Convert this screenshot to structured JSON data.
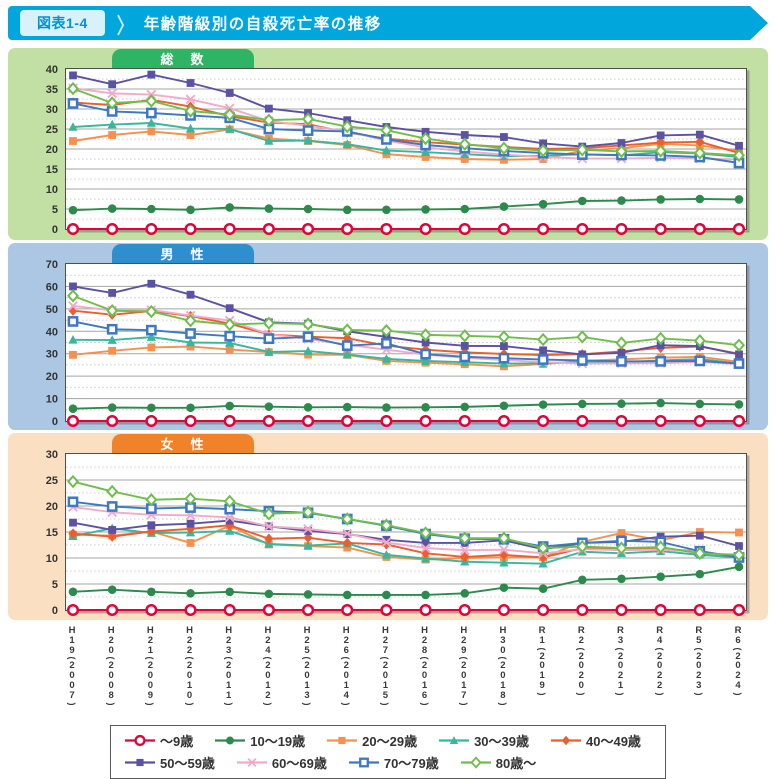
{
  "header": {
    "tag": "図表1-4",
    "title": "年齢階級別の自殺死亡率の推移",
    "banner_color": "#00a6dc",
    "tag_bg": "#d9f1fb",
    "tag_color": "#0093d5"
  },
  "panel_colors": {
    "total_bg": "#c2dfa4",
    "total_tab": "#2fb365",
    "male_bg": "#abc7e3",
    "male_tab": "#2e8fd0",
    "female_bg": "#fbdfc2",
    "female_tab": "#f0832a"
  },
  "series_styles": {
    "age0_9": {
      "color": "#e60039",
      "marker": "open-circle"
    },
    "age10_19": {
      "color": "#2d8a4d",
      "marker": "circle"
    },
    "age20_29": {
      "color": "#f6904e",
      "marker": "square"
    },
    "age30_39": {
      "color": "#38b79d",
      "marker": "triangle"
    },
    "age40_49": {
      "color": "#ea5f2d",
      "marker": "diamond"
    },
    "age50_59": {
      "color": "#5c52a4",
      "marker": "square"
    },
    "age60_69": {
      "color": "#f2aac8",
      "marker": "x"
    },
    "age70_79": {
      "color": "#3c78c4",
      "marker": "open-square"
    },
    "age80": {
      "color": "#6ebe4c",
      "marker": "open-diamond"
    }
  },
  "legend": {
    "rows": [
      [
        {
          "key": "age0_9",
          "label": "～9歳"
        },
        {
          "key": "age10_19",
          "label": "10～19歳"
        },
        {
          "key": "age20_29",
          "label": "20～29歳"
        },
        {
          "key": "age30_39",
          "label": "30～39歳"
        },
        {
          "key": "age40_49",
          "label": "40～49歳"
        }
      ],
      [
        {
          "key": "age50_59",
          "label": "50～59歳"
        },
        {
          "key": "age60_69",
          "label": "60～69歳"
        },
        {
          "key": "age70_79",
          "label": "70～79歳"
        },
        {
          "key": "age80",
          "label": "80歳～"
        }
      ]
    ]
  },
  "chart_data": [
    {
      "type": "line",
      "title": "総　数",
      "ylim": [
        0,
        40
      ],
      "ytick": 5,
      "grid": true,
      "categories": [
        "H19(2007)",
        "H20(2008)",
        "H21(2009)",
        "H22(2010)",
        "H23(2011)",
        "H24(2012)",
        "H25(2013)",
        "H26(2014)",
        "H27(2015)",
        "H28(2016)",
        "H29(2017)",
        "H30(2018)",
        "R1(2019)",
        "R2(2020)",
        "R3(2021)",
        "R4(2022)",
        "R5(2023)",
        "R6(2024)"
      ],
      "series": [
        {
          "key": "age0_9",
          "name": "～9歳",
          "values": [
            0,
            0,
            0,
            0,
            0,
            0,
            0,
            0,
            0,
            0,
            0,
            0,
            0,
            0,
            0,
            0,
            0,
            0
          ]
        },
        {
          "key": "age10_19",
          "name": "10～19歳",
          "values": [
            4.7,
            5.1,
            5.0,
            4.8,
            5.4,
            5.1,
            5.0,
            4.8,
            4.8,
            4.9,
            5.0,
            5.6,
            6.2,
            7.0,
            7.1,
            7.4,
            7.5,
            7.4
          ]
        },
        {
          "key": "age20_29",
          "name": "20～29歳",
          "values": [
            22.0,
            23.5,
            24.4,
            23.5,
            24.9,
            22.6,
            22.0,
            21.0,
            18.7,
            18.0,
            17.5,
            17.3,
            17.5,
            19.6,
            20.2,
            21.3,
            20.9,
            19.5
          ]
        },
        {
          "key": "age30_39",
          "name": "30～39歳",
          "values": [
            25.5,
            26.1,
            26.5,
            25.1,
            25.0,
            22.0,
            22.1,
            21.2,
            19.6,
            19.2,
            18.7,
            18.2,
            18.3,
            18.7,
            18.4,
            19.2,
            18.9,
            18.0
          ]
        },
        {
          "key": "age40_49",
          "name": "40～49歳",
          "values": [
            31.6,
            31.0,
            32.3,
            30.6,
            28.2,
            26.6,
            26.2,
            24.1,
            22.6,
            21.7,
            21.1,
            20.5,
            20.0,
            20.2,
            20.9,
            21.6,
            21.8,
            19.0
          ]
        },
        {
          "key": "age50_59",
          "name": "50～59歳",
          "values": [
            38.4,
            36.2,
            38.6,
            36.5,
            34.0,
            30.1,
            29.0,
            27.2,
            25.5,
            24.3,
            23.5,
            23.0,
            21.4,
            20.6,
            21.5,
            23.4,
            23.6,
            20.8
          ]
        },
        {
          "key": "age60_69",
          "name": "60～69歳",
          "values": [
            35.2,
            33.9,
            33.6,
            32.4,
            30.2,
            27.0,
            25.8,
            24.4,
            22.1,
            20.4,
            19.4,
            18.6,
            18.0,
            17.6,
            17.6,
            17.8,
            17.6,
            17.4
          ]
        },
        {
          "key": "age70_79",
          "name": "70～79歳",
          "values": [
            31.4,
            29.4,
            29.0,
            28.4,
            27.8,
            25.0,
            24.6,
            24.4,
            22.4,
            21.0,
            20.2,
            19.5,
            19.0,
            18.6,
            18.5,
            18.4,
            18.0,
            16.5
          ]
        },
        {
          "key": "age80",
          "name": "80歳～",
          "values": [
            35.1,
            31.5,
            32.0,
            29.5,
            28.6,
            27.2,
            27.5,
            25.6,
            24.7,
            22.6,
            21.2,
            20.2,
            19.6,
            19.8,
            19.4,
            19.5,
            19.0,
            18.4
          ]
        }
      ]
    },
    {
      "type": "line",
      "title": "男　性",
      "ylim": [
        0,
        70
      ],
      "ytick": 10,
      "grid": true,
      "categories": [
        "H19(2007)",
        "H20(2008)",
        "H21(2009)",
        "H22(2010)",
        "H23(2011)",
        "H24(2012)",
        "H25(2013)",
        "H26(2014)",
        "H27(2015)",
        "H28(2016)",
        "H29(2017)",
        "H30(2018)",
        "R1(2019)",
        "R2(2020)",
        "R3(2021)",
        "R4(2022)",
        "R5(2023)",
        "R6(2024)"
      ],
      "series": [
        {
          "key": "age0_9",
          "name": "～9歳",
          "values": [
            0,
            0,
            0,
            0,
            0,
            0,
            0,
            0,
            0,
            0,
            0,
            0,
            0,
            0,
            0,
            0,
            0,
            0
          ]
        },
        {
          "key": "age10_19",
          "name": "10～19歳",
          "values": [
            5.5,
            6.0,
            5.9,
            5.9,
            6.7,
            6.4,
            6.1,
            6.2,
            6.0,
            6.1,
            6.3,
            6.8,
            7.3,
            7.6,
            7.7,
            8.0,
            7.6,
            7.4
          ]
        },
        {
          "key": "age20_29",
          "name": "20～29歳",
          "values": [
            29.5,
            31.3,
            32.8,
            33.2,
            31.9,
            30.7,
            29.6,
            29.5,
            26.8,
            26.0,
            25.3,
            24.4,
            25.4,
            26.8,
            27.5,
            28.2,
            28.6,
            26.4
          ]
        },
        {
          "key": "age30_39",
          "name": "30～39歳",
          "values": [
            36.2,
            36.1,
            37.4,
            35.0,
            34.8,
            30.8,
            31.2,
            29.6,
            27.7,
            26.8,
            26.2,
            25.6,
            25.7,
            26.3,
            26.2,
            27.0,
            27.6,
            25.6
          ]
        },
        {
          "key": "age40_49",
          "name": "40～49歳",
          "values": [
            49.2,
            47.4,
            49.0,
            46.8,
            43.4,
            38.6,
            37.6,
            36.9,
            33.6,
            31.8,
            30.6,
            29.9,
            29.4,
            29.8,
            31.0,
            32.6,
            33.2,
            30.0
          ]
        },
        {
          "key": "age50_59",
          "name": "50～59歳",
          "values": [
            60.0,
            57.1,
            61.2,
            56.3,
            50.3,
            44.0,
            43.4,
            40.0,
            37.5,
            35.0,
            33.5,
            33.4,
            31.5,
            29.7,
            30.4,
            33.8,
            33.4,
            29.7
          ]
        },
        {
          "key": "age60_69",
          "name": "60～69歳",
          "values": [
            51.3,
            49.3,
            49.5,
            47.0,
            44.8,
            38.7,
            36.6,
            34.0,
            31.8,
            29.6,
            28.2,
            27.2,
            26.2,
            25.6,
            25.7,
            25.8,
            26.3,
            25.4
          ]
        },
        {
          "key": "age70_79",
          "name": "70～79歳",
          "values": [
            44.4,
            40.9,
            40.5,
            39.0,
            37.8,
            36.7,
            37.5,
            33.6,
            34.6,
            29.8,
            28.6,
            28.0,
            27.4,
            27.0,
            26.6,
            26.6,
            26.8,
            25.6
          ]
        },
        {
          "key": "age80",
          "name": "80歳～",
          "values": [
            55.8,
            49.2,
            48.8,
            44.7,
            43.0,
            43.6,
            43.2,
            40.6,
            40.3,
            38.4,
            38.0,
            37.5,
            36.3,
            37.5,
            34.8,
            36.8,
            35.8,
            33.8
          ]
        }
      ]
    },
    {
      "type": "line",
      "title": "女　性",
      "ylim": [
        0,
        30
      ],
      "ytick": 5,
      "grid": true,
      "categories": [
        "H19(2007)",
        "H20(2008)",
        "H21(2009)",
        "H22(2010)",
        "H23(2011)",
        "H24(2012)",
        "H25(2013)",
        "H26(2014)",
        "H27(2015)",
        "H28(2016)",
        "H29(2017)",
        "H30(2018)",
        "R1(2019)",
        "R2(2020)",
        "R3(2021)",
        "R4(2022)",
        "R5(2023)",
        "R6(2024)"
      ],
      "series": [
        {
          "key": "age0_9",
          "name": "～9歳",
          "values": [
            0,
            0,
            0,
            0,
            0,
            0,
            0,
            0,
            0,
            0,
            0,
            0,
            0,
            0,
            0,
            0,
            0,
            0
          ]
        },
        {
          "key": "age10_19",
          "name": "10～19歳",
          "values": [
            3.5,
            3.9,
            3.5,
            3.2,
            3.5,
            3.1,
            3.0,
            2.9,
            2.9,
            2.9,
            3.2,
            4.3,
            4.1,
            5.8,
            6.0,
            6.4,
            6.9,
            8.3
          ]
        },
        {
          "key": "age20_29",
          "name": "20～29歳",
          "values": [
            14.5,
            14.3,
            15.1,
            12.9,
            16.2,
            12.6,
            12.3,
            12.0,
            10.2,
            9.7,
            10.0,
            10.1,
            10.1,
            13.1,
            14.8,
            13.4,
            15.0,
            14.9
          ]
        },
        {
          "key": "age30_39",
          "name": "30～39歳",
          "values": [
            14.2,
            15.7,
            14.8,
            14.9,
            15.2,
            12.7,
            12.4,
            12.8,
            10.6,
            9.9,
            9.3,
            9.1,
            8.9,
            11.2,
            10.9,
            11.3,
            10.6,
            10.1
          ]
        },
        {
          "key": "age40_49",
          "name": "40～49歳",
          "values": [
            14.7,
            14.1,
            15.1,
            15.6,
            16.3,
            13.7,
            13.9,
            12.9,
            12.6,
            10.9,
            10.2,
            10.6,
            10.1,
            11.9,
            11.8,
            11.7,
            11.3,
            10.1
          ]
        },
        {
          "key": "age50_59",
          "name": "50～59歳",
          "values": [
            16.8,
            15.4,
            16.3,
            16.6,
            17.2,
            16.1,
            15.2,
            14.6,
            13.5,
            12.9,
            12.9,
            13.4,
            11.7,
            12.9,
            13.1,
            14.1,
            14.3,
            12.3
          ]
        },
        {
          "key": "age60_69",
          "name": "60～69歳",
          "values": [
            19.8,
            18.8,
            18.3,
            18.2,
            17.8,
            16.1,
            15.6,
            14.7,
            13.0,
            11.9,
            11.5,
            11.6,
            10.9,
            11.7,
            11.5,
            11.6,
            11.2,
            10.2
          ]
        },
        {
          "key": "age70_79",
          "name": "70～79歳",
          "values": [
            20.8,
            19.9,
            19.5,
            19.7,
            19.4,
            19.0,
            18.7,
            17.5,
            16.2,
            14.6,
            13.7,
            13.6,
            12.2,
            12.9,
            13.3,
            13.1,
            11.3,
            10.1
          ]
        },
        {
          "key": "age80",
          "name": "80歳～",
          "values": [
            24.7,
            22.8,
            21.2,
            21.4,
            20.9,
            18.5,
            18.8,
            17.5,
            16.3,
            14.8,
            13.8,
            13.8,
            11.9,
            12.2,
            11.9,
            12.1,
            10.9,
            10.6
          ]
        }
      ]
    }
  ]
}
